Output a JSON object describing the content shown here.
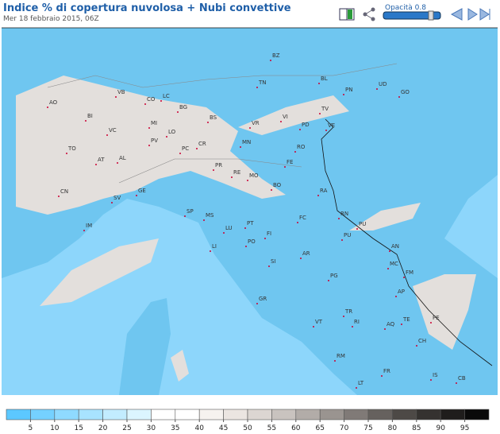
{
  "header": {
    "title": "Indice % di copertura nuvolosa + Nubi convettive",
    "subtitle": "Mer 18 febbraio 2015, 06Z",
    "opacity_label": "Opacità 0.8"
  },
  "map": {
    "labels": [
      "BZ",
      "TN",
      "BL",
      "PN",
      "UD",
      "GO",
      "TV",
      "VB",
      "CO",
      "LC",
      "BG",
      "BS",
      "AO",
      "BI",
      "VC",
      "MI",
      "LO",
      "VR",
      "VI",
      "PD",
      "VE",
      "TO",
      "PV",
      "PC",
      "CR",
      "MN",
      "RO",
      "AT",
      "AL",
      "PR",
      "RE",
      "MO",
      "FE",
      "CN",
      "GE",
      "BO",
      "RA",
      "SV",
      "SP",
      "MS",
      "FC",
      "RN",
      "IM",
      "LU",
      "PT",
      "PU",
      "FI",
      "PU",
      "LI",
      "PO",
      "SI",
      "AN",
      "AR",
      "MC",
      "PG",
      "FM",
      "GR",
      "TR",
      "AP",
      "TE",
      "VT",
      "RI",
      "AQ",
      "PE",
      "CH",
      "RM",
      "FR",
      "IS",
      "CB",
      "LT"
    ]
  },
  "legend": {
    "ticks": [
      5,
      10,
      15,
      20,
      25,
      30,
      35,
      40,
      45,
      50,
      55,
      60,
      65,
      70,
      75,
      80,
      85,
      90,
      95
    ],
    "colors": [
      "#5cc8ff",
      "#75d1ff",
      "#8fdaff",
      "#a8e3ff",
      "#c2ecff",
      "#dbf5ff",
      "#ffffff",
      "#ffffff",
      "#f6f2ef",
      "#ebe5e1",
      "#dcd6d2",
      "#c9c3bf",
      "#b2aca8",
      "#9a9490",
      "#807a77",
      "#66615e",
      "#4d4946",
      "#353230",
      "#1f1d1c",
      "#0a0a0a"
    ]
  }
}
